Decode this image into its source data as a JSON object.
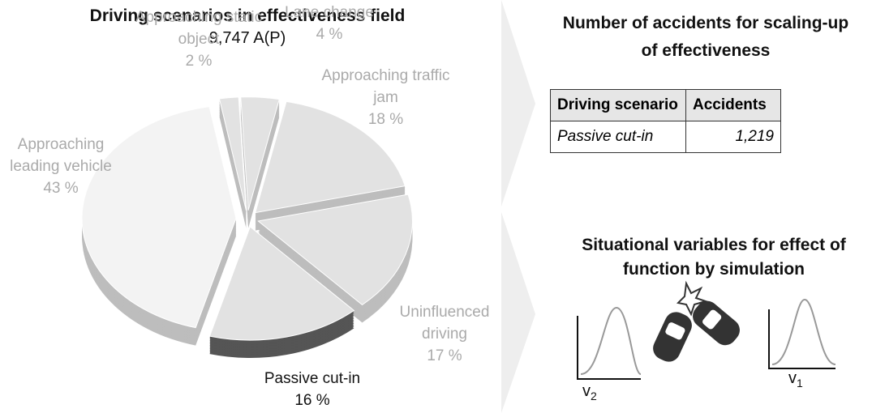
{
  "chart_data": {
    "type": "pie",
    "title": "Driving scenarios in effectiveness field",
    "subtitle": "9,747 A(P)",
    "categories": [
      "Approaching static object",
      "Lane change",
      "Approaching traffic jam",
      "Uninfluenced driving",
      "Passive cut-in",
      "Approaching leading vehicle"
    ],
    "values": [
      2,
      4,
      18,
      17,
      16,
      43
    ],
    "value_labels": [
      "2 %",
      "4 %",
      "18 %",
      "17 %",
      "16 %",
      "43 %"
    ]
  },
  "table": {
    "title": "Number of accidents for scaling-up of effectiveness",
    "header": [
      "Driving scenario",
      "Accidents"
    ],
    "rows": [
      [
        "Passive cut-in",
        "1,219"
      ]
    ]
  },
  "simulation": {
    "title": "Situational variables for effect of function by simulation",
    "variables": [
      {
        "base": "v",
        "sub": "2"
      },
      {
        "base": "v",
        "sub": "1"
      }
    ]
  }
}
